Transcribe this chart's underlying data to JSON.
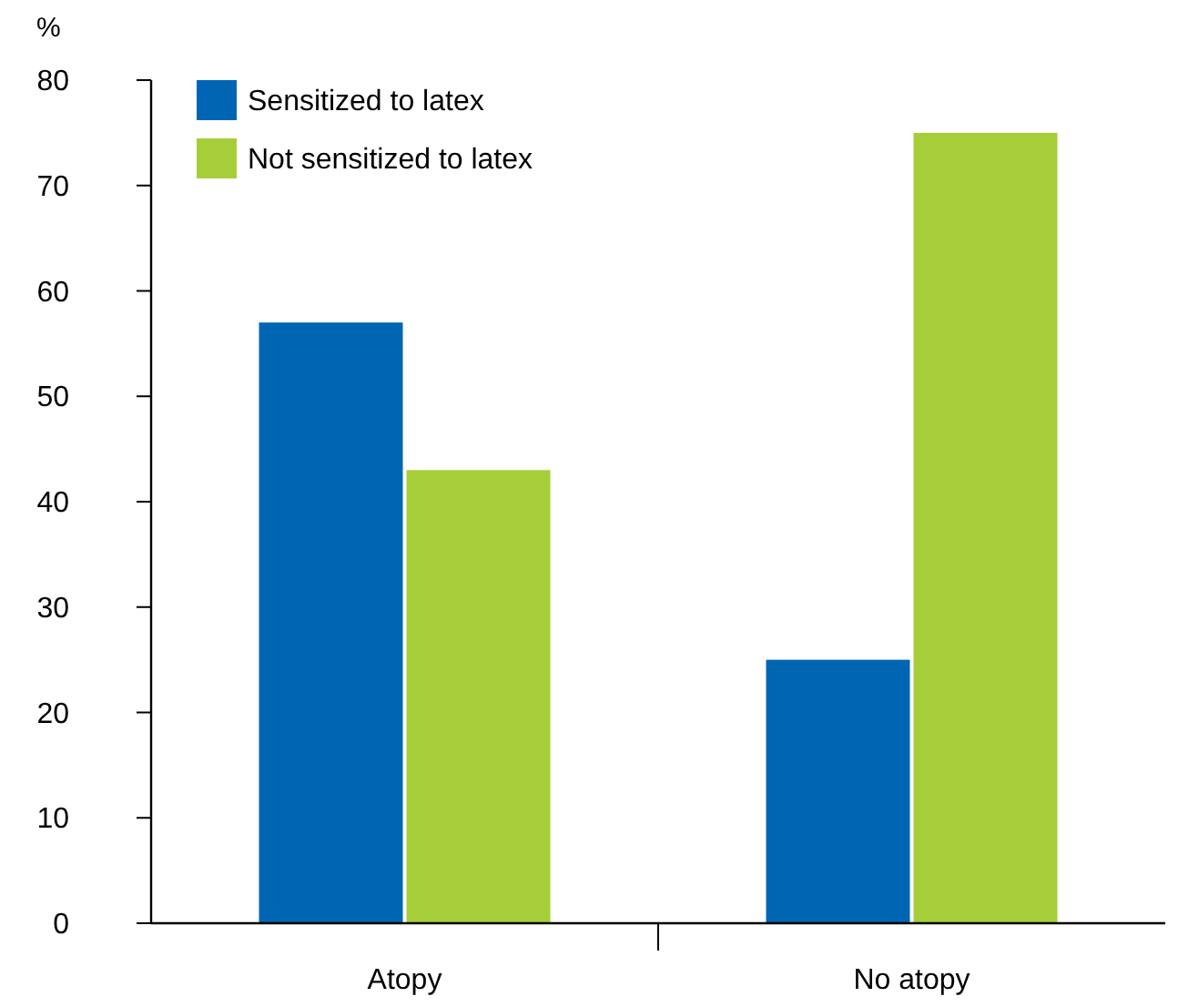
{
  "chart_data": {
    "type": "bar",
    "ylabel": "%",
    "categories": [
      "Atopy",
      "No atopy"
    ],
    "series": [
      {
        "name": "Sensitized to latex",
        "color": "#0066b3",
        "values": [
          57,
          25
        ]
      },
      {
        "name": "Not sensitized to latex",
        "color": "#a6ce39",
        "values": [
          43,
          75
        ]
      }
    ],
    "ylim": [
      0,
      80
    ],
    "yticks": [
      0,
      10,
      20,
      30,
      40,
      50,
      60,
      70,
      80
    ],
    "grid": false,
    "legend": "top left"
  }
}
